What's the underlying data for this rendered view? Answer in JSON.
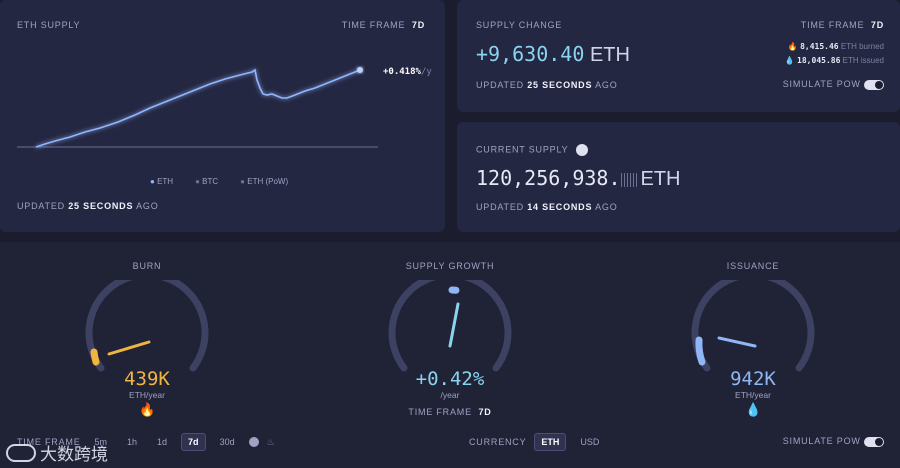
{
  "eth_supply": {
    "title": "ETH SUPPLY",
    "time_frame_label": "TIME FRAME",
    "time_frame_value": "7d",
    "change_label": "+0.418%",
    "change_unit": "/y",
    "legend": [
      "ETH",
      "BTC",
      "ETH (PoW)"
    ],
    "updated_prefix": "UPDATED",
    "updated_value": "25 SECONDS",
    "updated_suffix": "AGO"
  },
  "supply_change": {
    "title": "SUPPLY CHANGE",
    "time_frame_label": "TIME FRAME",
    "time_frame_value": "7d",
    "amount": "+9,630.40",
    "unit": "ETH",
    "burned_value": "8,415.46",
    "burned_label": "ETH burned",
    "issued_value": "18,045.86",
    "issued_label": "ETH issued",
    "updated_prefix": "UPDATED",
    "updated_value": "25 SECONDS",
    "updated_suffix": "AGO",
    "simulate_label": "SIMULATE PoW"
  },
  "current_supply": {
    "title": "CURRENT SUPPLY",
    "amount": "120,256,938.",
    "unit": "ETH",
    "updated_prefix": "UPDATED",
    "updated_value": "14 SECONDS",
    "updated_suffix": "AGO"
  },
  "gauges": {
    "burn": {
      "title": "BURN",
      "value": "439K",
      "unit": "ETH/year",
      "color": "#f0b440"
    },
    "growth": {
      "title": "SUPPLY GROWTH",
      "value": "+0.42%",
      "unit": "/year",
      "color": "#8ad4ef",
      "time_frame_label": "TIME FRAME",
      "time_frame_value": "7d"
    },
    "issuance": {
      "title": "ISSUANCE",
      "value": "942K",
      "unit": "ETH/year",
      "color": "#8fb6f5"
    }
  },
  "bottom_bar": {
    "time_frame_label": "TIME FRAME",
    "frames": [
      "5m",
      "1h",
      "1d",
      "7d",
      "30d"
    ],
    "active_frame": "7d",
    "currency_label": "CURRENCY",
    "currencies": [
      "ETH",
      "USD"
    ],
    "active_currency": "ETH",
    "simulate_label": "SIMULATE PoW"
  },
  "watermark": "大数跨境"
}
